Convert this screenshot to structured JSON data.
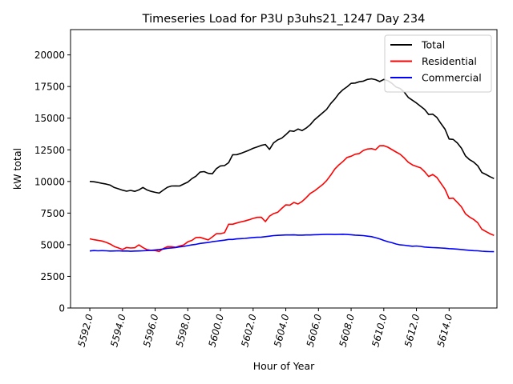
{
  "chart_data": {
    "type": "line",
    "title": "Timeseries Load for P3U  p3uhs21_1247  Day 234",
    "xlabel": "Hour of Year",
    "ylabel": "kW total",
    "xlim": [
      5590.82,
      5616.93
    ],
    "ylim": [
      0,
      22000
    ],
    "xticks": [
      5592,
      5594,
      5596,
      5598,
      5600,
      5602,
      5604,
      5606,
      5608,
      5610,
      5612,
      5614
    ],
    "xtick_labels": [
      "5592.0",
      "5594.0",
      "5596.0",
      "5598.0",
      "5600.0",
      "5602.0",
      "5604.0",
      "5606.0",
      "5608.0",
      "5610.0",
      "5612.0",
      "5614.0"
    ],
    "yticks": [
      0,
      2500,
      5000,
      7500,
      10000,
      12500,
      15000,
      17500,
      20000
    ],
    "ytick_labels": [
      "0",
      "2500",
      "5000",
      "7500",
      "10000",
      "12500",
      "15000",
      "17500",
      "20000"
    ],
    "legend_position": "top-right",
    "x_start": 5592.0,
    "x_step": 0.25,
    "series": [
      {
        "name": "Total",
        "color": "#000000",
        "values": [
          10000,
          9975,
          9920,
          9850,
          9790,
          9710,
          9520,
          9420,
          9310,
          9230,
          9290,
          9220,
          9330,
          9530,
          9330,
          9220,
          9140,
          9080,
          9320,
          9540,
          9640,
          9650,
          9640,
          9800,
          9950,
          10220,
          10420,
          10740,
          10780,
          10640,
          10610,
          11010,
          11230,
          11250,
          11480,
          12110,
          12120,
          12220,
          12340,
          12470,
          12620,
          12730,
          12850,
          12920,
          12530,
          13050,
          13280,
          13420,
          13690,
          14000,
          13960,
          14140,
          14020,
          14220,
          14490,
          14860,
          15140,
          15420,
          15700,
          16160,
          16510,
          16940,
          17250,
          17480,
          17750,
          17780,
          17880,
          17930,
          18060,
          18110,
          18040,
          17900,
          18060,
          17960,
          17750,
          17460,
          17350,
          17060,
          16640,
          16420,
          16200,
          15950,
          15700,
          15290,
          15320,
          15060,
          14580,
          14130,
          13350,
          13320,
          13050,
          12640,
          12020,
          11720,
          11530,
          11240,
          10710,
          10560,
          10380,
          10230
        ]
      },
      {
        "name": "Residential",
        "color": "#ff0000",
        "values": [
          5470,
          5400,
          5350,
          5290,
          5190,
          5050,
          4860,
          4750,
          4620,
          4780,
          4740,
          4760,
          4990,
          4780,
          4610,
          4560,
          4540,
          4470,
          4700,
          4850,
          4850,
          4800,
          4900,
          4990,
          5230,
          5340,
          5570,
          5580,
          5480,
          5380,
          5620,
          5870,
          5870,
          5950,
          6620,
          6620,
          6720,
          6800,
          6880,
          6970,
          7080,
          7160,
          7170,
          6830,
          7260,
          7460,
          7560,
          7870,
          8150,
          8130,
          8340,
          8220,
          8420,
          8720,
          9050,
          9250,
          9500,
          9750,
          10070,
          10500,
          10980,
          11310,
          11580,
          11900,
          11990,
          12150,
          12210,
          12450,
          12560,
          12590,
          12510,
          12820,
          12830,
          12710,
          12520,
          12330,
          12150,
          11860,
          11520,
          11310,
          11190,
          11080,
          10780,
          10390,
          10550,
          10320,
          9850,
          9380,
          8650,
          8680,
          8350,
          8000,
          7450,
          7190,
          7000,
          6730,
          6230,
          6050,
          5870,
          5740
        ]
      },
      {
        "name": "Commercial",
        "color": "#0000ff",
        "values": [
          4510,
          4540,
          4520,
          4530,
          4520,
          4500,
          4510,
          4520,
          4500,
          4510,
          4480,
          4500,
          4510,
          4520,
          4540,
          4560,
          4590,
          4620,
          4660,
          4720,
          4750,
          4780,
          4830,
          4870,
          4930,
          4990,
          5030,
          5100,
          5140,
          5180,
          5240,
          5280,
          5320,
          5360,
          5420,
          5420,
          5460,
          5480,
          5500,
          5540,
          5570,
          5590,
          5600,
          5640,
          5680,
          5720,
          5740,
          5760,
          5770,
          5770,
          5780,
          5760,
          5760,
          5770,
          5770,
          5790,
          5800,
          5810,
          5820,
          5820,
          5810,
          5820,
          5830,
          5810,
          5790,
          5760,
          5740,
          5720,
          5680,
          5640,
          5560,
          5460,
          5340,
          5240,
          5160,
          5060,
          4990,
          4960,
          4920,
          4880,
          4900,
          4870,
          4820,
          4790,
          4770,
          4760,
          4740,
          4720,
          4690,
          4670,
          4650,
          4620,
          4590,
          4560,
          4530,
          4520,
          4490,
          4470,
          4460,
          4450
        ]
      }
    ]
  }
}
